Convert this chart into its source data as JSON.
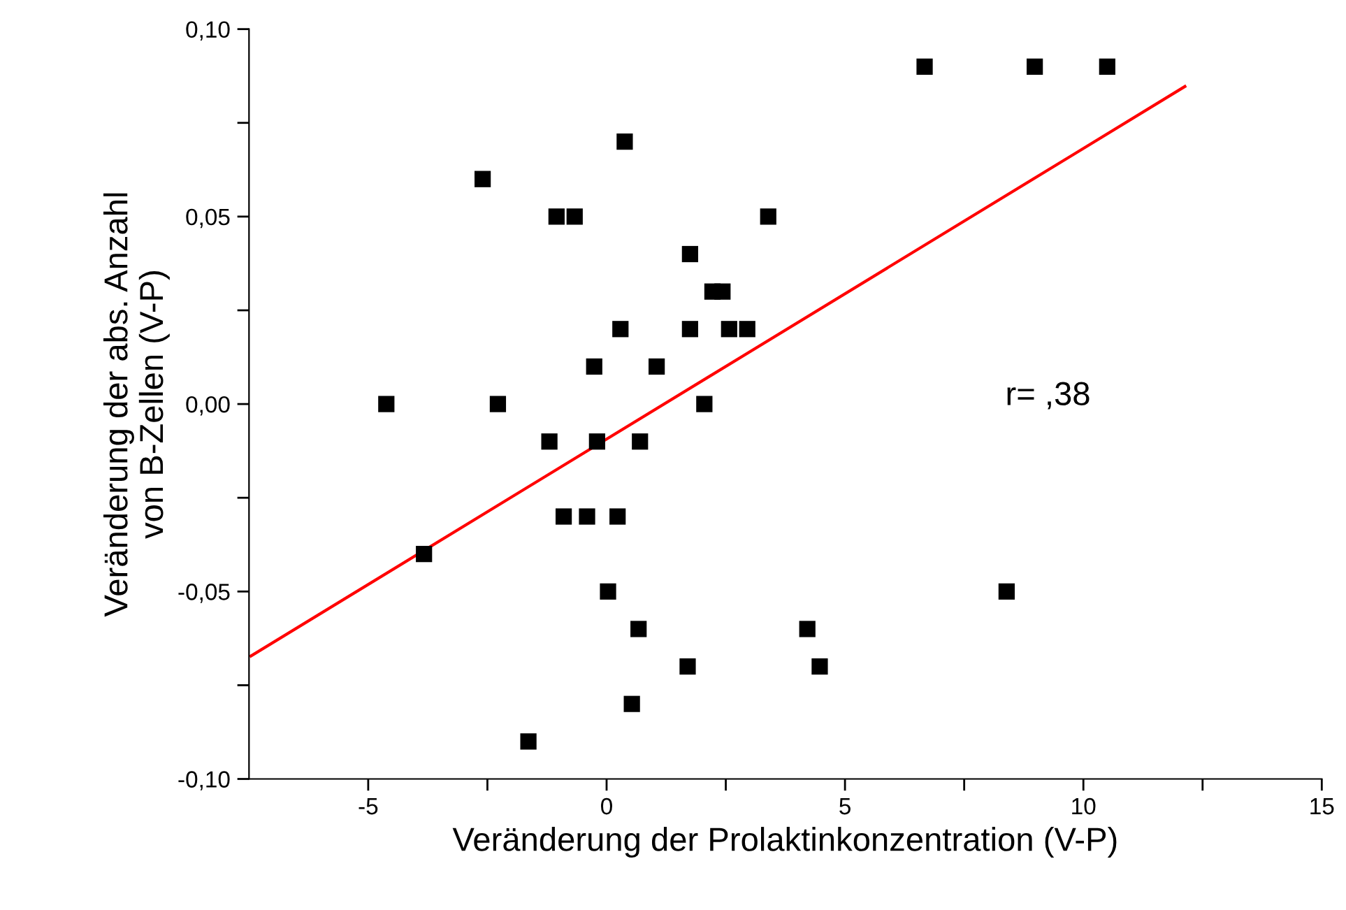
{
  "chart_data": {
    "type": "scatter",
    "xlabel": "Veränderung der Prolaktinkonzentration (V-P)",
    "ylabel": "Veränderung der abs. Anzahl\nvon B-Zellen (V-P)",
    "xlim": [
      -7.5,
      15
    ],
    "ylim": [
      -0.1,
      0.1
    ],
    "xticks": [
      {
        "value": -5,
        "label": "-5"
      },
      {
        "value": -2.5,
        "label": null
      },
      0,
      {
        "value": 2.5,
        "label": null
      },
      5,
      {
        "value": 7.5,
        "label": null
      },
      10,
      {
        "value": 12.5,
        "label": null
      },
      15
    ],
    "yticks": [
      {
        "value": -0.1,
        "label": "-0,10"
      },
      {
        "value": -0.075,
        "label": null
      },
      {
        "value": -0.05,
        "label": "-0,05"
      },
      {
        "value": -0.025,
        "label": null
      },
      {
        "value": 0,
        "label": "0,00"
      },
      {
        "value": 0.025,
        "label": null
      },
      {
        "value": 0.05,
        "label": "0,05"
      },
      {
        "value": 0.075,
        "label": null
      },
      {
        "value": 0.1,
        "label": "0,10"
      }
    ],
    "grid": false,
    "legend": false,
    "annotations": [
      "r= ,38"
    ],
    "series": [
      {
        "marker": "square",
        "color": "#000000",
        "x": [
          6.67,
          8.98,
          10.5,
          0.38,
          -2.6,
          -1.05,
          -0.67,
          3.39,
          1.75,
          2.22,
          2.43,
          0.29,
          1.75,
          2.57,
          2.95,
          -0.26,
          1.05,
          -4.62,
          -2.28,
          2.05,
          -1.2,
          -0.2,
          0.7,
          -0.9,
          -0.41,
          0.23,
          -3.83,
          0.03,
          8.39,
          0.67,
          4.21,
          4.47,
          1.7,
          0.53,
          -1.64
        ],
        "values": [
          0.09,
          0.09,
          0.09,
          0.07,
          0.06,
          0.05,
          0.05,
          0.05,
          0.04,
          0.03,
          0.03,
          0.02,
          0.02,
          0.02,
          0.02,
          0.01,
          0.01,
          0,
          0,
          0,
          -0.01,
          -0.01,
          -0.01,
          -0.03,
          -0.03,
          -0.03,
          -0.04,
          -0.05,
          -0.05,
          -0.06,
          -0.06,
          -0.07,
          -0.07,
          -0.08,
          -0.09
        ]
      },
      {
        "type": "line",
        "color": "#ff0000",
        "x": [
          -7.46,
          12.13
        ],
        "values": [
          -0.0672,
          0.0847
        ]
      }
    ]
  }
}
